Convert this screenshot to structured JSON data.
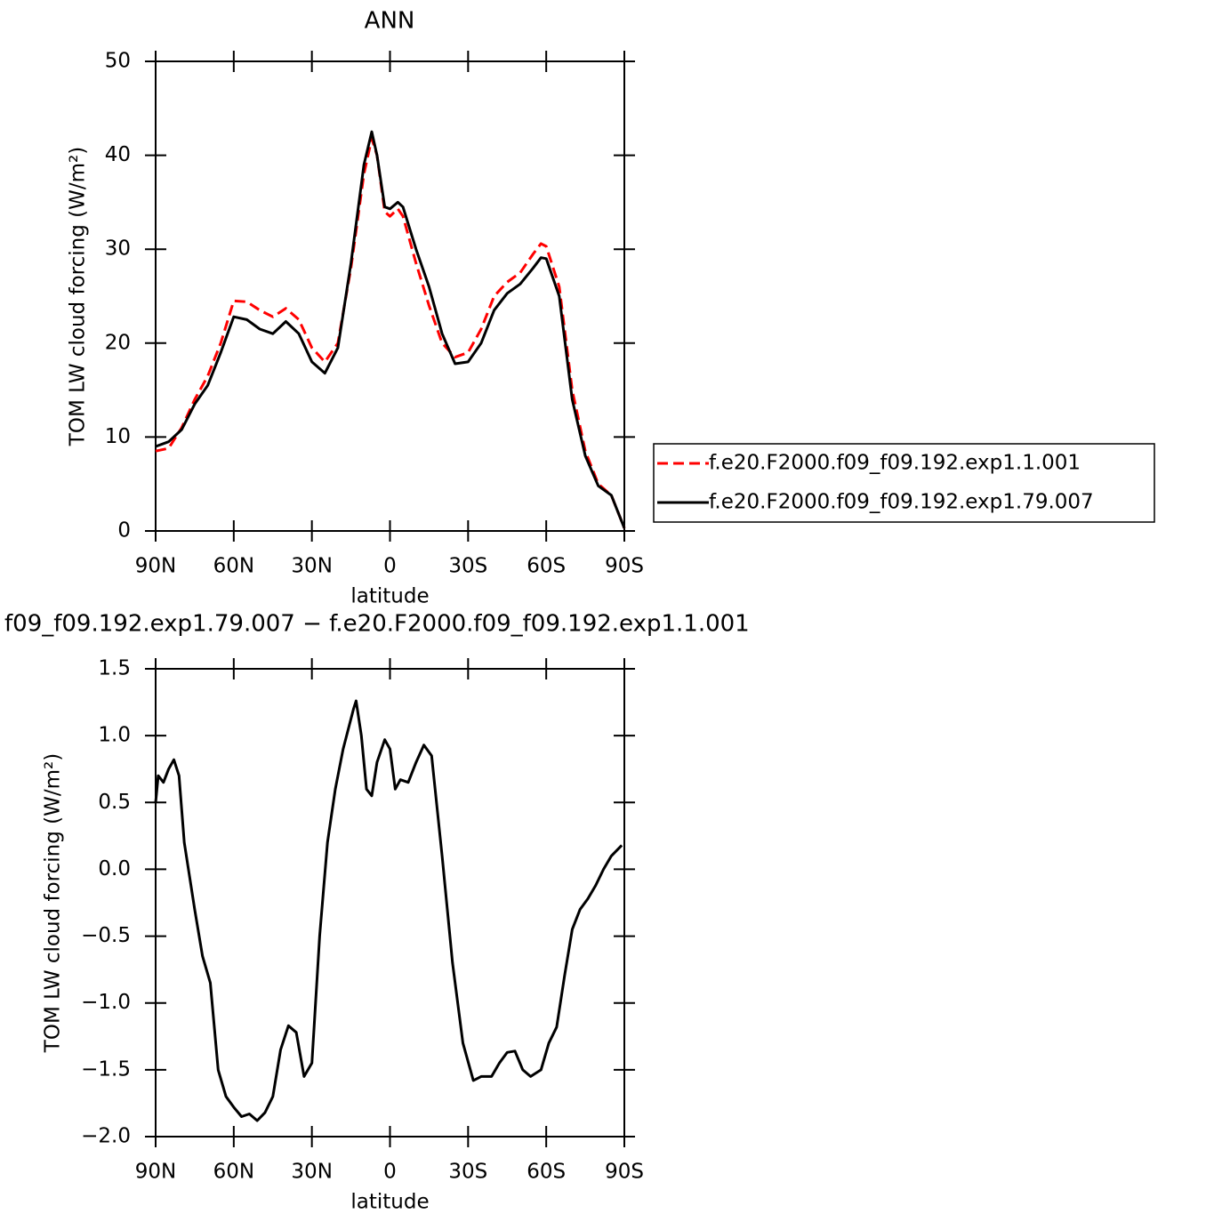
{
  "chart_data": [
    {
      "type": "line",
      "title": "ANN",
      "ylabel": "TOM LW cloud forcing (W/m²)",
      "xlabel": "latitude",
      "x": [
        90,
        85,
        80,
        75,
        70,
        65,
        60,
        55,
        50,
        45,
        40,
        35,
        30,
        25,
        20,
        15,
        10,
        7,
        5,
        2,
        0,
        -3,
        -5,
        -10,
        -15,
        -20,
        -25,
        -30,
        -35,
        -40,
        -45,
        -50,
        -55,
        -58,
        -60,
        -65,
        -70,
        -75,
        -80,
        -85,
        -90
      ],
      "series": [
        {
          "name": "f.e20.F2000.f09_f09.192.exp1.1.001",
          "color": "#ff0000",
          "dash": true,
          "values": [
            8.5,
            8.8,
            11,
            14,
            16.5,
            20,
            24.5,
            24.4,
            23.5,
            22.8,
            23.7,
            22.5,
            19.5,
            18,
            20,
            28,
            38,
            41.8,
            40,
            34,
            33.5,
            34.3,
            33.5,
            28.5,
            24,
            20,
            18.5,
            19,
            21.5,
            25,
            26.5,
            27.5,
            29.5,
            30.6,
            30.3,
            26,
            15,
            8.5,
            5,
            3.8,
            0.3
          ]
        },
        {
          "name": "f.e20.F2000.f09_f09.192.exp1.79.007",
          "color": "#000000",
          "dash": false,
          "values": [
            9,
            9.5,
            10.8,
            13.5,
            15.5,
            19,
            22.8,
            22.5,
            21.5,
            21,
            22.3,
            21,
            18,
            16.8,
            19.5,
            28.5,
            39,
            42.5,
            40,
            34.5,
            34.3,
            35,
            34.5,
            30,
            26,
            21,
            17.8,
            18,
            20,
            23.5,
            25.3,
            26.3,
            28,
            29.1,
            29,
            25,
            14,
            8,
            4.8,
            3.8,
            0.3
          ]
        }
      ],
      "xlim": [
        90,
        -90
      ],
      "xticks": [
        {
          "value": 90,
          "label": "90N"
        },
        {
          "value": 60,
          "label": "60N"
        },
        {
          "value": 30,
          "label": "30N"
        },
        0,
        {
          "value": -30,
          "label": "30S"
        },
        {
          "value": -60,
          "label": "60S"
        },
        {
          "value": -90,
          "label": "90S"
        }
      ],
      "ylim": [
        0,
        50
      ],
      "yticks": [
        0,
        10,
        20,
        30,
        40,
        50
      ],
      "legend": "right"
    },
    {
      "type": "line",
      "title": "f09_f09.192.exp1.79.007 − f.e20.F2000.f09_f09.192.exp1.1.001",
      "ylabel": "TOM LW cloud forcing (W/m²)",
      "xlabel": "latitude",
      "x": [
        90,
        89,
        87,
        85,
        83,
        81,
        79,
        75,
        72,
        69,
        66,
        63,
        60,
        57,
        54,
        51,
        48,
        45,
        42,
        39,
        36,
        33,
        30,
        27,
        24,
        21,
        18,
        14,
        13,
        11,
        9,
        7,
        5,
        2,
        0,
        -2,
        -4,
        -7,
        -10,
        -13,
        -16,
        -20,
        -24,
        -28,
        -32,
        -35,
        -39,
        -42,
        -45,
        -48,
        -51,
        -54,
        -58,
        -61,
        -64,
        -67,
        -70,
        -73,
        -76,
        -79,
        -82,
        -85,
        -89
      ],
      "values": [
        0.5,
        0.7,
        0.65,
        0.75,
        0.82,
        0.7,
        0.2,
        -0.3,
        -0.65,
        -0.85,
        -1.5,
        -1.7,
        -1.78,
        -1.85,
        -1.83,
        -1.88,
        -1.82,
        -1.7,
        -1.35,
        -1.17,
        -1.22,
        -1.55,
        -1.45,
        -0.5,
        0.2,
        0.6,
        0.9,
        1.2,
        1.26,
        1.0,
        0.6,
        0.55,
        0.8,
        0.97,
        0.9,
        0.6,
        0.67,
        0.65,
        0.8,
        0.93,
        0.85,
        0.1,
        -0.7,
        -1.3,
        -1.58,
        -1.55,
        -1.55,
        -1.45,
        -1.37,
        -1.36,
        -1.5,
        -1.55,
        -1.5,
        -1.3,
        -1.18,
        -0.8,
        -0.45,
        -0.3,
        -0.22,
        -0.12,
        0.0,
        0.1,
        0.18
      ],
      "color": "#000000",
      "xlim": [
        90,
        -90
      ],
      "xticks": [
        {
          "value": 90,
          "label": "90N"
        },
        {
          "value": 60,
          "label": "60N"
        },
        {
          "value": 30,
          "label": "30N"
        },
        0,
        {
          "value": -30,
          "label": "30S"
        },
        {
          "value": -60,
          "label": "60S"
        },
        {
          "value": -90,
          "label": "90S"
        }
      ],
      "ylim": [
        -2.0,
        1.5
      ],
      "yticks": [
        {
          "value": -2.0,
          "label": "−2.0"
        },
        {
          "value": -1.5,
          "label": "−1.5"
        },
        {
          "value": -1.0,
          "label": "−1.0"
        },
        {
          "value": -0.5,
          "label": "−0.5"
        },
        {
          "value": 0.0,
          "label": "0.0"
        },
        0.5,
        {
          "value": 1.0,
          "label": "1.0"
        },
        1.5
      ]
    }
  ]
}
